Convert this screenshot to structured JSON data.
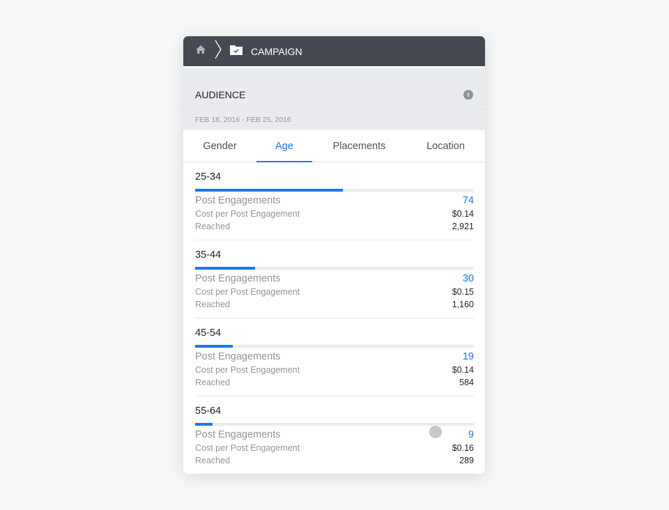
{
  "header": {
    "title": "CAMPAIGN"
  },
  "section": {
    "title": "AUDIENCE",
    "date_range": "FEB 18, 2016 - FEB 25, 2016"
  },
  "tabs": [
    {
      "label": "Gender"
    },
    {
      "label": "Age",
      "active": true
    },
    {
      "label": "Placements"
    },
    {
      "label": "Location"
    }
  ],
  "labels": {
    "engagements": "Post Engagements",
    "cost": "Cost per Post Engagement",
    "reached": "Reached"
  },
  "rows": [
    {
      "age": "25-34",
      "engagements": "74",
      "cost": "$0.14",
      "reached": "2,921",
      "bar_fraction": 0.53
    },
    {
      "age": "35-44",
      "engagements": "30",
      "cost": "$0.15",
      "reached": "1,160",
      "bar_fraction": 0.215
    },
    {
      "age": "45-54",
      "engagements": "19",
      "cost": "$0.14",
      "reached": "584",
      "bar_fraction": 0.135
    },
    {
      "age": "55-64",
      "engagements": "9",
      "cost": "$0.16",
      "reached": "289",
      "bar_fraction": 0.0625
    }
  ],
  "colors": {
    "accent": "#1877f2",
    "header": "#454a52"
  }
}
